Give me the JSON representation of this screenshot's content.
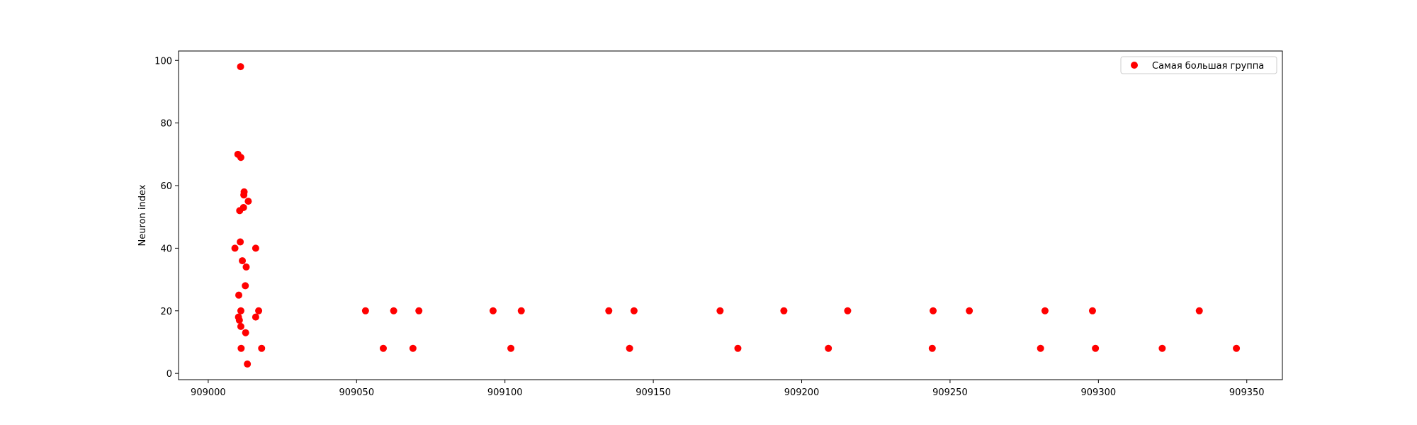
{
  "chart_data": {
    "type": "scatter",
    "title": "",
    "xlabel": "",
    "ylabel": "Neuron index",
    "xlim": [
      908990,
      909362
    ],
    "ylim": [
      -2,
      103
    ],
    "xticks": [
      909000,
      909050,
      909100,
      909150,
      909200,
      909250,
      909300,
      909350
    ],
    "yticks": [
      0,
      20,
      40,
      60,
      80,
      100
    ],
    "grid": false,
    "legend_position": "top-right",
    "series": [
      {
        "name": "Самая большая группа",
        "color": "#ff0000",
        "points": [
          {
            "x": 909009.0,
            "y": 40
          },
          {
            "x": 909010.0,
            "y": 70
          },
          {
            "x": 909010.2,
            "y": 18
          },
          {
            "x": 909010.3,
            "y": 25
          },
          {
            "x": 909010.5,
            "y": 17
          },
          {
            "x": 909010.6,
            "y": 52
          },
          {
            "x": 909010.8,
            "y": 42
          },
          {
            "x": 909010.9,
            "y": 98
          },
          {
            "x": 909011.0,
            "y": 69
          },
          {
            "x": 909011.0,
            "y": 20
          },
          {
            "x": 909011.0,
            "y": 15
          },
          {
            "x": 909011.1,
            "y": 8
          },
          {
            "x": 909011.5,
            "y": 36
          },
          {
            "x": 909011.9,
            "y": 53
          },
          {
            "x": 909012.0,
            "y": 57
          },
          {
            "x": 909012.1,
            "y": 58
          },
          {
            "x": 909012.5,
            "y": 28
          },
          {
            "x": 909012.6,
            "y": 13
          },
          {
            "x": 909012.8,
            "y": 34
          },
          {
            "x": 909013.2,
            "y": 3
          },
          {
            "x": 909013.5,
            "y": 55
          },
          {
            "x": 909016.0,
            "y": 40
          },
          {
            "x": 909016.0,
            "y": 18
          },
          {
            "x": 909017.0,
            "y": 20
          },
          {
            "x": 909018.0,
            "y": 8
          },
          {
            "x": 909053.0,
            "y": 20
          },
          {
            "x": 909059.0,
            "y": 8
          },
          {
            "x": 909062.5,
            "y": 20
          },
          {
            "x": 909069.0,
            "y": 8
          },
          {
            "x": 909071.0,
            "y": 20
          },
          {
            "x": 909096.0,
            "y": 20
          },
          {
            "x": 909102.0,
            "y": 8
          },
          {
            "x": 909105.5,
            "y": 20
          },
          {
            "x": 909135.0,
            "y": 20
          },
          {
            "x": 909142.0,
            "y": 8
          },
          {
            "x": 909143.5,
            "y": 20
          },
          {
            "x": 909172.5,
            "y": 20
          },
          {
            "x": 909178.5,
            "y": 8
          },
          {
            "x": 909194.0,
            "y": 20
          },
          {
            "x": 909209.0,
            "y": 8
          },
          {
            "x": 909215.5,
            "y": 20
          },
          {
            "x": 909244.0,
            "y": 8
          },
          {
            "x": 909244.3,
            "y": 20
          },
          {
            "x": 909256.5,
            "y": 20
          },
          {
            "x": 909280.5,
            "y": 8
          },
          {
            "x": 909282.0,
            "y": 20
          },
          {
            "x": 909298.0,
            "y": 20
          },
          {
            "x": 909299.0,
            "y": 8
          },
          {
            "x": 909321.5,
            "y": 8
          },
          {
            "x": 909334.0,
            "y": 20
          },
          {
            "x": 909346.5,
            "y": 8
          }
        ]
      }
    ]
  }
}
